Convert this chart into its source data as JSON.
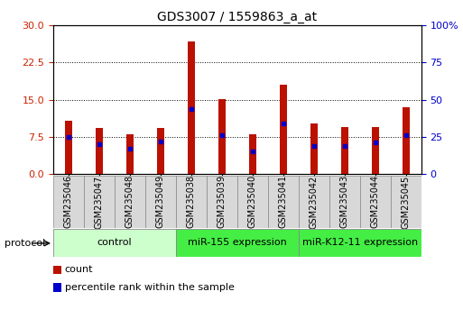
{
  "title": "GDS3007 / 1559863_a_at",
  "samples": [
    "GSM235046",
    "GSM235047",
    "GSM235048",
    "GSM235049",
    "GSM235038",
    "GSM235039",
    "GSM235040",
    "GSM235041",
    "GSM235042",
    "GSM235043",
    "GSM235044",
    "GSM235045"
  ],
  "counts": [
    10.8,
    9.2,
    8.0,
    9.2,
    26.8,
    15.1,
    8.0,
    18.0,
    10.2,
    9.5,
    9.5,
    13.5
  ],
  "percentile_ranks": [
    25.0,
    20.0,
    17.0,
    22.0,
    44.0,
    26.0,
    15.0,
    34.0,
    19.0,
    19.0,
    21.0,
    26.0
  ],
  "bar_color": "#bb1100",
  "dot_color": "#0000cc",
  "ylim_left": [
    0,
    30
  ],
  "ylim_right": [
    0,
    100
  ],
  "yticks_left": [
    0,
    7.5,
    15,
    22.5,
    30
  ],
  "yticks_right": [
    0,
    25,
    50,
    75,
    100
  ],
  "plot_bg": "#ffffff",
  "protocol_groups": [
    {
      "label": "control",
      "start": 0,
      "end": 4,
      "color": "#ccffcc"
    },
    {
      "label": "miR-155 expression",
      "start": 4,
      "end": 8,
      "color": "#44ee44"
    },
    {
      "label": "miR-K12-11 expression",
      "start": 8,
      "end": 12,
      "color": "#44ee44"
    }
  ],
  "legend_count_label": "count",
  "legend_pct_label": "percentile rank within the sample",
  "bar_width": 0.25,
  "title_fontsize": 10,
  "label_fontsize": 8,
  "tick_fontsize": 8,
  "axis_color_left": "#cc2200",
  "axis_color_right": "#0000cc"
}
